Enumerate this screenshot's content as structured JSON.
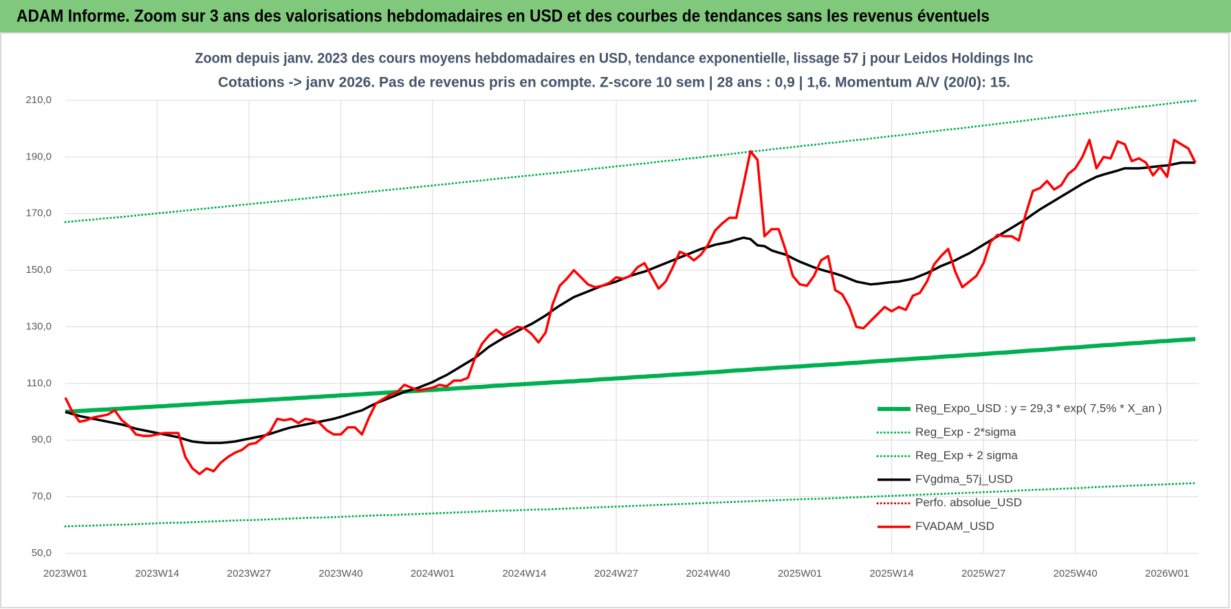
{
  "header": {
    "title": "ADAM Informe. Zoom sur 3 ans des valorisations hebdomadaires en USD et des courbes de tendances sans les revenus éventuels"
  },
  "chart_data": {
    "type": "line",
    "title": "Zoom depuis janv. 2023 des cours moyens hebdomadaires en USD, tendance exponentielle, lissage 57 j pour Leidos Holdings Inc",
    "subtitle": "Cotations -> janv 2026. Pas de revenus pris en compte. Z-score 10 sem | 28 ans : 0,9 | 1,6. Momentum A/V (20/0): 15.",
    "ylim": [
      50,
      210
    ],
    "yticks": [
      {
        "value": 50,
        "label": "50,0"
      },
      {
        "value": 70,
        "label": "70,0"
      },
      {
        "value": 90,
        "label": "90,0"
      },
      {
        "value": 110,
        "label": "110,0"
      },
      {
        "value": 130,
        "label": "130,0"
      },
      {
        "value": 150,
        "label": "150,0"
      },
      {
        "value": 170,
        "label": "170,0"
      },
      {
        "value": 190,
        "label": "190,0"
      },
      {
        "value": 210,
        "label": "210,0"
      }
    ],
    "grid": true,
    "legend": "lower right",
    "categories": [
      "2023W01",
      null,
      null,
      null,
      null,
      null,
      null,
      null,
      null,
      null,
      null,
      null,
      null,
      "2023W14",
      null,
      null,
      null,
      null,
      null,
      null,
      null,
      null,
      null,
      null,
      null,
      null,
      "2023W27",
      null,
      null,
      null,
      null,
      null,
      null,
      null,
      null,
      null,
      null,
      null,
      null,
      "2023W40",
      null,
      null,
      null,
      null,
      null,
      null,
      null,
      null,
      null,
      null,
      null,
      null,
      "2024W01",
      null,
      null,
      null,
      null,
      null,
      null,
      null,
      null,
      null,
      null,
      null,
      null,
      "2024W14",
      null,
      null,
      null,
      null,
      null,
      null,
      null,
      null,
      null,
      null,
      null,
      null,
      "2024W27",
      null,
      null,
      null,
      null,
      null,
      null,
      null,
      null,
      null,
      null,
      null,
      null,
      "2024W40",
      null,
      null,
      null,
      null,
      null,
      null,
      null,
      null,
      null,
      null,
      null,
      null,
      "2025W01",
      null,
      null,
      null,
      null,
      null,
      null,
      null,
      null,
      null,
      null,
      null,
      null,
      "2025W14",
      null,
      null,
      null,
      null,
      null,
      null,
      null,
      null,
      null,
      null,
      null,
      null,
      "2025W27",
      null,
      null,
      null,
      null,
      null,
      null,
      null,
      null,
      null,
      null,
      null,
      null,
      "2025W40",
      null,
      null,
      null,
      null,
      null,
      null,
      null,
      null,
      null,
      null,
      null,
      null,
      "2026W01",
      null,
      null,
      null,
      null
    ],
    "series": [
      {
        "name": "Reg_Expo_USD : y = 29,3 * exp( 7,5% *  X_an )",
        "color": "#00b050",
        "line_style": "thick",
        "values": [
          100,
          100.1,
          100.3,
          100.4,
          100.6,
          100.7,
          100.8,
          101.0,
          101.1,
          101.3,
          101.4,
          101.6,
          101.7,
          101.9,
          102.0,
          102.2,
          102.3,
          102.5,
          102.6,
          102.8,
          102.9,
          103.1,
          103.2,
          103.4,
          103.5,
          103.7,
          103.8,
          104.0,
          104.1,
          104.3,
          104.4,
          104.6,
          104.7,
          104.9,
          105.0,
          105.2,
          105.3,
          105.5,
          105.6,
          105.8,
          105.9,
          106.1,
          106.2,
          106.4,
          106.5,
          106.7,
          106.8,
          107.0,
          107.1,
          107.3,
          107.4,
          107.6,
          107.7,
          107.9,
          108.0,
          108.2,
          108.4,
          108.5,
          108.7,
          108.8,
          109.0,
          109.2,
          109.3,
          109.5,
          109.6,
          109.8,
          109.9,
          110.1,
          110.2,
          110.4,
          110.5,
          110.7,
          110.8,
          111.0,
          111.1,
          111.3,
          111.5,
          111.6,
          111.8,
          111.9,
          112.1,
          112.3,
          112.4,
          112.6,
          112.7,
          112.9,
          113.1,
          113.2,
          113.4,
          113.5,
          113.7,
          113.9,
          114.0,
          114.2,
          114.4,
          114.6,
          114.7,
          114.9,
          115.1,
          115.2,
          115.4,
          115.6,
          115.7,
          115.9,
          116.0,
          116.2,
          116.4,
          116.5,
          116.7,
          116.8,
          117.0,
          117.2,
          117.3,
          117.5,
          117.7,
          117.9,
          118.0,
          118.2,
          118.4,
          118.5,
          118.7,
          118.9,
          119.0,
          119.2,
          119.4,
          119.6,
          119.7,
          119.9,
          120.1,
          120.2,
          120.4,
          120.6,
          120.8,
          120.9,
          121.1,
          121.3,
          121.5,
          121.7,
          121.8,
          122.0,
          122.2,
          122.4,
          122.6,
          122.7,
          122.9,
          123.1,
          123.3,
          123.5,
          123.6,
          123.8,
          124.0,
          124.2,
          124.3,
          124.5,
          124.7,
          124.9,
          125.0,
          125.2,
          125.4,
          125.5,
          125.7
        ]
      },
      {
        "name": "Reg_Exp - 2*sigma",
        "color": "#00b050",
        "line_style": "dotted",
        "values": [
          59.5,
          59.6,
          59.7,
          59.7,
          59.8,
          59.9,
          60.0,
          60.1,
          60.1,
          60.2,
          60.3,
          60.4,
          60.5,
          60.6,
          60.7,
          60.8,
          60.8,
          60.9,
          61.0,
          61.1,
          61.2,
          61.3,
          61.4,
          61.5,
          61.6,
          61.7,
          61.7,
          61.8,
          61.9,
          62.0,
          62.1,
          62.2,
          62.3,
          62.4,
          62.5,
          62.6,
          62.6,
          62.7,
          62.8,
          62.9,
          63.0,
          63.1,
          63.2,
          63.3,
          63.4,
          63.5,
          63.5,
          63.6,
          63.7,
          63.8,
          63.9,
          64.0,
          64.1,
          64.2,
          64.3,
          64.4,
          64.5,
          64.6,
          64.7,
          64.8,
          64.9,
          65.0,
          65.1,
          65.1,
          65.2,
          65.3,
          65.4,
          65.5,
          65.5,
          65.6,
          65.7,
          65.8,
          65.9,
          66.0,
          66.1,
          66.2,
          66.3,
          66.4,
          66.5,
          66.6,
          66.7,
          66.8,
          66.9,
          67.0,
          67.1,
          67.2,
          67.3,
          67.4,
          67.5,
          67.6,
          67.7,
          67.8,
          67.9,
          68.0,
          68.1,
          68.2,
          68.3,
          68.4,
          68.5,
          68.6,
          68.7,
          68.8,
          68.9,
          69.0,
          69.1,
          69.2,
          69.2,
          69.3,
          69.4,
          69.5,
          69.6,
          69.7,
          69.8,
          69.9,
          70.0,
          70.1,
          70.2,
          70.3,
          70.4,
          70.5,
          70.6,
          70.7,
          70.8,
          70.9,
          71.0,
          71.1,
          71.2,
          71.3,
          71.4,
          71.5,
          71.6,
          71.7,
          71.8,
          71.9,
          72.0,
          72.2,
          72.3,
          72.4,
          72.5,
          72.6,
          72.7,
          72.8,
          72.9,
          73.0,
          73.1,
          73.3,
          73.4,
          73.5,
          73.6,
          73.7,
          73.8,
          73.9,
          74.0,
          74.1,
          74.2,
          74.3,
          74.4,
          74.5,
          74.6,
          74.7,
          74.8
        ]
      },
      {
        "name": "Reg_Exp + 2 sigma",
        "color": "#00b050",
        "line_style": "dotted",
        "values": [
          167.0,
          167.2,
          167.5,
          167.7,
          167.9,
          168.2,
          168.4,
          168.6,
          168.8,
          169.1,
          169.3,
          169.6,
          169.8,
          170.1,
          170.3,
          170.6,
          170.8,
          171.1,
          171.3,
          171.6,
          171.8,
          172.1,
          172.3,
          172.6,
          172.8,
          173.1,
          173.3,
          173.6,
          173.8,
          174.1,
          174.3,
          174.6,
          174.8,
          175.1,
          175.3,
          175.6,
          175.9,
          176.1,
          176.4,
          176.6,
          176.9,
          177.2,
          177.4,
          177.7,
          177.9,
          178.2,
          178.4,
          178.7,
          178.9,
          179.2,
          179.4,
          179.7,
          179.9,
          180.2,
          180.4,
          180.7,
          181.0,
          181.2,
          181.5,
          181.7,
          182.0,
          182.3,
          182.5,
          182.8,
          183.0,
          183.3,
          183.5,
          183.8,
          184.0,
          184.3,
          184.5,
          184.8,
          185.0,
          185.3,
          185.6,
          185.9,
          186.1,
          186.4,
          186.7,
          186.9,
          187.2,
          187.5,
          187.7,
          188.0,
          188.3,
          188.6,
          188.8,
          189.1,
          189.4,
          189.6,
          189.9,
          190.2,
          190.5,
          190.7,
          191.0,
          191.3,
          191.6,
          191.9,
          192.1,
          192.4,
          192.7,
          193.0,
          193.2,
          193.5,
          193.8,
          194.1,
          194.3,
          194.6,
          194.9,
          195.1,
          195.4,
          195.7,
          196.0,
          196.2,
          196.5,
          196.8,
          197.1,
          197.4,
          197.6,
          197.9,
          198.2,
          198.5,
          198.8,
          199.1,
          199.4,
          199.7,
          199.9,
          200.2,
          200.5,
          200.8,
          201.1,
          201.4,
          201.7,
          202.0,
          202.3,
          202.6,
          202.9,
          203.2,
          203.5,
          203.8,
          204.1,
          204.4,
          204.7,
          205.0,
          205.3,
          205.6,
          205.9,
          206.2,
          206.5,
          206.8,
          207.1,
          207.4,
          207.7,
          207.9,
          208.2,
          208.5,
          208.8,
          209.1,
          209.4,
          209.6,
          209.9
        ]
      },
      {
        "name": "FVgdma_57j_USD",
        "color": "#000000",
        "line_style": "solid",
        "values": [
          100,
          99.2,
          98.5,
          98,
          97.5,
          97,
          96.5,
          96,
          95.5,
          94.8,
          94,
          93.5,
          93,
          92.5,
          92,
          91.5,
          91,
          90.2,
          89.5,
          89.2,
          89,
          89,
          89,
          89.2,
          89.5,
          90,
          90.5,
          91,
          91.5,
          92.2,
          93,
          93.8,
          94.5,
          95,
          95.5,
          96,
          96.5,
          97,
          97.5,
          98.2,
          99,
          99.8,
          100.5,
          101.8,
          103,
          104,
          105,
          106,
          107,
          107.8,
          108.5,
          109.5,
          110.5,
          111.8,
          113,
          114.5,
          116,
          117.5,
          119,
          121,
          123,
          124.5,
          126,
          127.2,
          128.5,
          129.8,
          131,
          132.5,
          134,
          135.8,
          137.5,
          139,
          140.5,
          141.5,
          142.5,
          143.5,
          144.5,
          145.2,
          146,
          147,
          148,
          148.8,
          149.5,
          150.5,
          151.5,
          152.5,
          153.5,
          154.5,
          155.5,
          156.5,
          157.5,
          158.2,
          159,
          159.5,
          160,
          160.8,
          161.5,
          161,
          158.8,
          158.5,
          157,
          156.2,
          155.5,
          154.2,
          153,
          152,
          151,
          150.2,
          149.5,
          148.8,
          148,
          147,
          146,
          145.5,
          145,
          145.2,
          145.5,
          145.8,
          146,
          146.5,
          147,
          148,
          149,
          150.2,
          151.5,
          152.5,
          153.5,
          154.8,
          156,
          157.5,
          159,
          160.5,
          162,
          163.5,
          165,
          166.5,
          168,
          169.8,
          171.5,
          173,
          174.5,
          176,
          177.5,
          179,
          180.5,
          181.8,
          183,
          183.8,
          184.5,
          185.2,
          186,
          186,
          186,
          186.2,
          186.5,
          186.8,
          187,
          187.5,
          188,
          188,
          188
        ]
      },
      {
        "name": "Perfo. absolue_USD",
        "color": "#c00000",
        "line_style": "dotted"
      },
      {
        "name": "FVADAM_USD",
        "color": "#ff0000",
        "line_style": "solid",
        "values": [
          105,
          100,
          96.5,
          97,
          98,
          98.5,
          99,
          100.5,
          97,
          95,
          92,
          91.5,
          91.5,
          92,
          92.5,
          92.5,
          92.5,
          84,
          80,
          78,
          80,
          79,
          82,
          84,
          85.5,
          86.5,
          88.5,
          89,
          91,
          93,
          97.5,
          97,
          97.5,
          96,
          97.5,
          97,
          96,
          93.5,
          92,
          92,
          94.5,
          94.5,
          92,
          98,
          103,
          104.5,
          106,
          107,
          109.5,
          108.5,
          107.5,
          108,
          108.5,
          109.5,
          109,
          111,
          111,
          112,
          119,
          124,
          127,
          129,
          127,
          128.5,
          130,
          129.5,
          127.5,
          124.5,
          128,
          138,
          144.5,
          147,
          150,
          147.5,
          145,
          144,
          144.5,
          145.5,
          147.5,
          147,
          148,
          151,
          152.5,
          148,
          143.5,
          146,
          151,
          156.5,
          155.5,
          153.5,
          155.5,
          159,
          164,
          166.5,
          168.5,
          168.5,
          180,
          192,
          189,
          162,
          164.5,
          164.5,
          157,
          148,
          145,
          144.5,
          148,
          153.5,
          155,
          143,
          141.5,
          137,
          130,
          129.5,
          132,
          134.5,
          137,
          135.5,
          137,
          136,
          141,
          142,
          146,
          152,
          155,
          157.5,
          149.5,
          144,
          146,
          148,
          152.5,
          160,
          162.5,
          162,
          162,
          160.5,
          170,
          178,
          179,
          181.5,
          178.5,
          180,
          184,
          186,
          190,
          196,
          186,
          190,
          189.5,
          195.5,
          194.5,
          188.5,
          189.5,
          188,
          183.5,
          186.5,
          183,
          196,
          194.5,
          193,
          188
        ]
      }
    ]
  }
}
